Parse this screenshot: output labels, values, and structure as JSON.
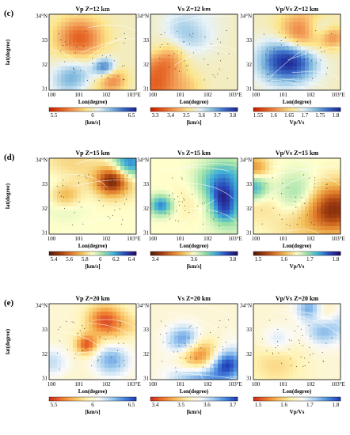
{
  "figure": {
    "panels": [
      {
        "label": "(c)",
        "ylabel": "lat(degree)",
        "maps": [
          {
            "title": "Vp Z=12 km",
            "xlabel": "Lon(degree)",
            "unit": "[km/s]",
            "colorbar": {
              "colors": [
                "#cc2000",
                "#e45f20",
                "#f3a15a",
                "#fde68a",
                "#e8f3f8",
                "#86bde0",
                "#3b6cc8",
                "#1f2c99"
              ],
              "ticks": [
                "5.5",
                "6",
                "6.5"
              ]
            },
            "seed": 3
          },
          {
            "title": "Vs Z=12 km",
            "xlabel": "Lon(degree)",
            "unit": "[km/s]",
            "colorbar": {
              "colors": [
                "#cc2000",
                "#e45f20",
                "#f3a15a",
                "#fde68a",
                "#e8f3f8",
                "#86bde0",
                "#3b6cc8",
                "#1f2c99"
              ],
              "ticks": [
                "3.3",
                "3.4",
                "3.5",
                "3.6",
                "3.7",
                "3.8"
              ]
            },
            "seed": 7
          },
          {
            "title": "Vp/Vs Z=12 km",
            "xlabel": "Lon(degree)",
            "unit": "Vp/Vs",
            "colorbar": {
              "colors": [
                "#cc2000",
                "#e45f20",
                "#f3a15a",
                "#fde68a",
                "#e8f3f8",
                "#86bde0",
                "#3b6cc8",
                "#1f2c99"
              ],
              "ticks": [
                "1.55",
                "1.6",
                "1.65",
                "1.7",
                "1.75",
                "1.8"
              ]
            },
            "seed": 11
          }
        ]
      },
      {
        "label": "(d)",
        "ylabel": "lat(degree)",
        "maps": [
          {
            "title": "Vp Z=15 km",
            "xlabel": "Lon(degree)",
            "unit": "[km/s]",
            "colorbar": {
              "colors": [
                "#5a1e0a",
                "#a23c10",
                "#e07a2a",
                "#f4c15c",
                "#ffffcc",
                "#99e0a8",
                "#3fb0d8",
                "#2b4bbf",
                "#22116e"
              ],
              "ticks": [
                "5.4",
                "5.6",
                "5.8",
                "6",
                "6.2",
                "6.4"
              ]
            },
            "seed": 17
          },
          {
            "title": "Vs Z=15 km",
            "xlabel": "Lon(degree)",
            "unit": "[km/s]",
            "colorbar": {
              "colors": [
                "#5a1e0a",
                "#a23c10",
                "#e07a2a",
                "#f4c15c",
                "#ffffcc",
                "#99e0a8",
                "#3fb0d8",
                "#2b4bbf",
                "#22116e"
              ],
              "ticks": [
                "3.4",
                "3.6",
                "3.8"
              ]
            },
            "seed": 23
          },
          {
            "title": "Vp/Vs Z=15 km",
            "xlabel": "Lon(degree)",
            "unit": "Vp/Vs",
            "colorbar": {
              "colors": [
                "#5a1e0a",
                "#a23c10",
                "#e07a2a",
                "#f4c15c",
                "#ffffcc",
                "#99e0a8",
                "#3fb0d8",
                "#2b4bbf",
                "#22116e"
              ],
              "ticks": [
                "1.5",
                "1.6",
                "1.7",
                "1.8"
              ]
            },
            "seed": 29
          }
        ]
      },
      {
        "label": "(e)",
        "ylabel": "lat(degree)",
        "maps": [
          {
            "title": "Vp Z=20 km",
            "xlabel": "Lon(degree)",
            "unit": "[km/s]",
            "colorbar": {
              "colors": [
                "#d03020",
                "#f07a30",
                "#f8c060",
                "#fff2b0",
                "#fafafa",
                "#a8d0f0",
                "#4f8fe0",
                "#2040b8"
              ],
              "ticks": [
                "5.5",
                "6",
                "6.5"
              ]
            },
            "seed": 31
          },
          {
            "title": "Vs Z=20 km",
            "xlabel": "Lon(degree)",
            "unit": "[km/s]",
            "colorbar": {
              "colors": [
                "#d03020",
                "#f07a30",
                "#f8c060",
                "#fff2b0",
                "#fafafa",
                "#a8d0f0",
                "#4f8fe0",
                "#2040b8"
              ],
              "ticks": [
                "3.4",
                "3.5",
                "3.6",
                "3.7"
              ]
            },
            "seed": 37
          },
          {
            "title": "Vp/Vs Z=20 km",
            "xlabel": "Lon(degree)",
            "unit": "Vp/Vs",
            "colorbar": {
              "colors": [
                "#d03020",
                "#f07a30",
                "#f8c060",
                "#fff2b0",
                "#fafafa",
                "#a8d0f0",
                "#4f8fe0",
                "#2040b8"
              ],
              "ticks": [
                "1.5",
                "1.6",
                "1.7",
                "1.8"
              ]
            },
            "seed": 41
          }
        ]
      }
    ],
    "lat_ticks": [
      "34°N",
      "33",
      "32",
      "31"
    ],
    "lon_ticks": [
      "100",
      "101",
      "102",
      "103°E"
    ]
  }
}
